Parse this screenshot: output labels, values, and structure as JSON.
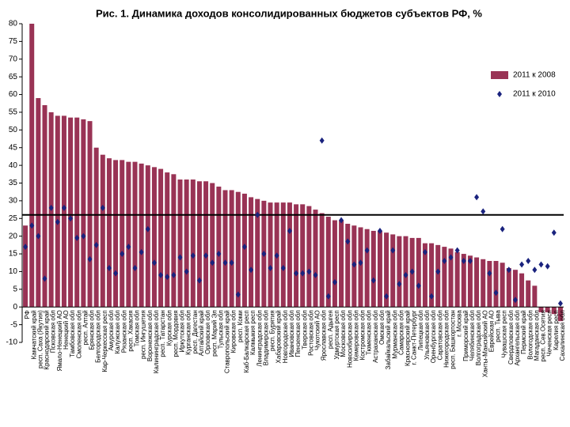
{
  "chart_data": {
    "type": "bar",
    "title": "Рис. 1. Динамика доходов консолидированных бюджетов субъектов РФ, %",
    "categories": [
      "РФ",
      "Камчатский край",
      "респ. Саха (Якутия)",
      "Краснодарский край",
      "Псковская обл",
      "Ямало-Ненецкий АО",
      "Ненецкий АО",
      "Тамбовская обл",
      "Смоленская обл",
      "респ. Алтай",
      "Брянская обл",
      "Белгородская обл",
      "Кар-Черкесская респ",
      "Амурская обл",
      "Калужская обл",
      "Рязанская обл",
      "респ. Хакасия",
      "Томская обл",
      "респ. Ингушетия",
      "Воронежская обл",
      "Калининградская обл",
      "респ. Татарстан",
      "Курская обл",
      "респ. Мордовия",
      "Иркутская обл",
      "Курганская обл",
      "респ. Дагестан",
      "Алтайский край",
      "Орловская обл",
      "респ. Марий Эл",
      "Тульская обл",
      "Ставропольский край",
      "Кировская обл",
      "респ. Коми",
      "Каб-Балкарская респ",
      "Калмыкия респ",
      "Ленинградская обл",
      "Владимирская обл",
      "респ. Бурятия",
      "Хабаровский край",
      "Новгородская обл",
      "Ивановская обл",
      "Пензенская обл",
      "Тверская обл",
      "Ростовская обл",
      "Чукотский АО",
      "Ярославская обл",
      "респ. Адыгея",
      "Удмуртская респ",
      "Московская обл",
      "Новосибирская обл",
      "Кемеровская обл",
      "Костромская обл",
      "Тюменская обл",
      "Астраханская обл",
      "Омская обл",
      "Забайкальский край",
      "Мурманская обл",
      "Самарская обл",
      "Красноярский край",
      "г. Санкт-Петербург",
      "Липецкая обл",
      "Ульяновская обл",
      "Оренбургская обл",
      "Саратовская обл",
      "Нижегородская обл",
      "респ. Башкортостан",
      "г. Москва",
      "Приморский край",
      "Челябинская обл",
      "Волгоградская обл",
      "Ханты-Мансийский АО",
      "Еврейская АО",
      "респ. Тыва",
      "Чувашская респ",
      "Свердловская обл",
      "Архангельская обл",
      "Пермский край",
      "Вологодская обл",
      "Магаданская обл",
      "респ. Сев.Осетия",
      "Чеченская респ",
      "Карелия респ",
      "Сахалинская обл"
    ],
    "series": [
      {
        "name": "2011 к 2008",
        "color": "#993355",
        "values": [
          23,
          80,
          59,
          57,
          55,
          54,
          54,
          53.5,
          53.5,
          53,
          52.5,
          45,
          43,
          42,
          41.5,
          41.5,
          41,
          41,
          40.5,
          40,
          39.5,
          39,
          38,
          37.5,
          36,
          36,
          36,
          35.5,
          35.5,
          35,
          34,
          33,
          33,
          32.5,
          32,
          31,
          30.5,
          30,
          29.5,
          29.5,
          29.5,
          29.5,
          29,
          29,
          28.5,
          27.5,
          26.5,
          25.5,
          24.5,
          24.5,
          23.5,
          23,
          22.5,
          22,
          21.5,
          21.5,
          21,
          20.5,
          20,
          20,
          19.5,
          19.5,
          18,
          18,
          17.5,
          17,
          16.5,
          15.5,
          15,
          14.5,
          14,
          13.5,
          13,
          13,
          12.5,
          11,
          10.5,
          9.5,
          7.5,
          6,
          -1.5,
          -1.5,
          -2,
          -4
        ]
      },
      {
        "name": "2011 к 2010",
        "color": "#1a237e",
        "values": [
          17,
          23,
          20,
          8,
          28,
          24,
          28,
          25,
          19.5,
          20,
          13.5,
          17.5,
          28,
          11,
          9.5,
          15,
          17,
          11,
          15.5,
          22,
          12.5,
          9,
          8.5,
          9,
          14,
          10,
          14.5,
          7.5,
          14.5,
          12.5,
          15,
          12.5,
          12.5,
          3.5,
          17,
          10.5,
          26,
          15,
          11,
          14.5,
          11,
          21.5,
          9.5,
          9.5,
          10,
          9,
          47,
          3,
          7,
          24.5,
          18.5,
          12,
          12.5,
          16,
          7.5,
          21.5,
          3,
          16,
          6.5,
          9,
          10,
          6,
          15.5,
          3,
          10,
          13,
          14,
          16,
          13,
          13,
          31,
          27,
          9.5,
          4,
          22,
          10.5,
          2,
          12,
          13,
          10.5,
          12,
          11.5,
          21,
          1
        ]
      }
    ],
    "hline": 26,
    "ylim": [
      -10,
      80
    ],
    "yticks": [
      -10,
      -5,
      0,
      5,
      10,
      15,
      20,
      25,
      30,
      35,
      40,
      45,
      50,
      55,
      60,
      65,
      70,
      75,
      80
    ],
    "legend": "top-right"
  }
}
